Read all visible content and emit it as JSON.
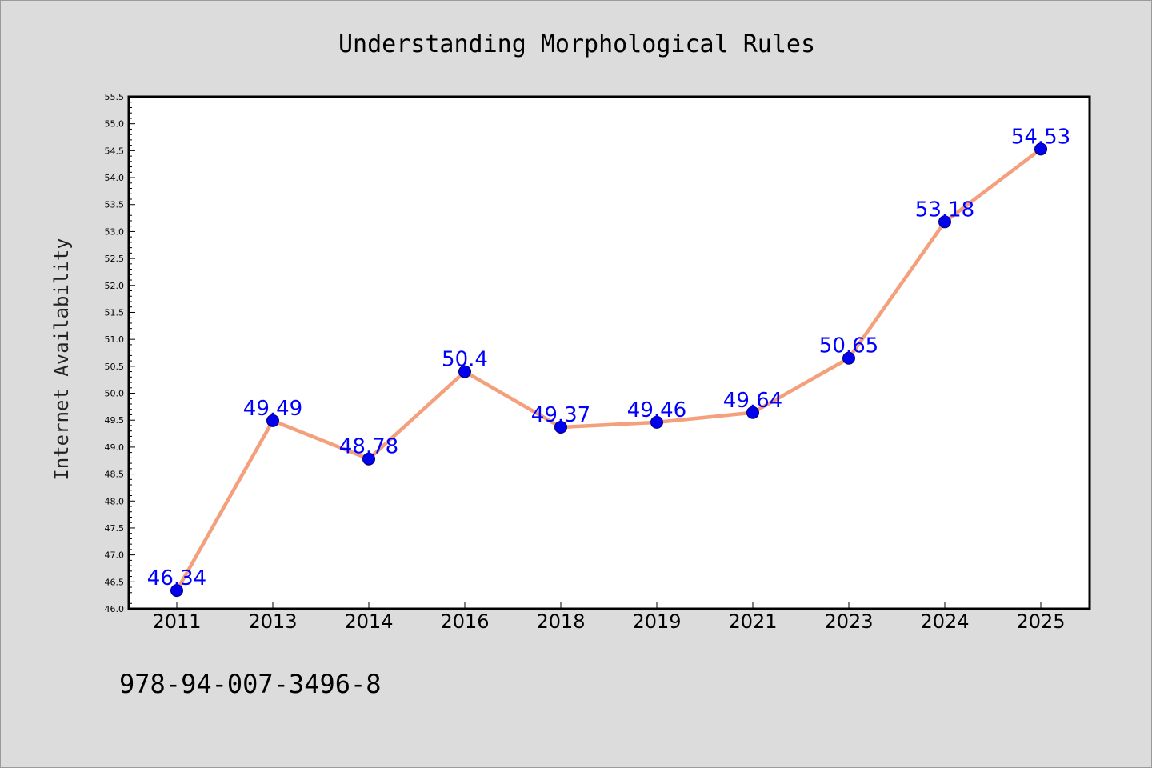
{
  "chart_data": {
    "type": "line",
    "title": "Understanding Morphological Rules",
    "xlabel": "",
    "ylabel": "Internet Availability",
    "categories": [
      "2011",
      "2013",
      "2014",
      "2016",
      "2018",
      "2019",
      "2021",
      "2023",
      "2024",
      "2025"
    ],
    "values": [
      46.34,
      49.49,
      48.78,
      50.4,
      49.37,
      49.46,
      49.64,
      50.65,
      53.18,
      54.53
    ],
    "data_labels": [
      "46.34",
      "49.49",
      "48.78",
      "50.4",
      "49.37",
      "49.46",
      "49.64",
      "50.65",
      "53.18",
      "54.53"
    ],
    "ylim": [
      46.0,
      55.5
    ],
    "yticks": [
      "46.0",
      "46.5",
      "47.0",
      "47.5",
      "48.0",
      "48.5",
      "49.0",
      "49.5",
      "50.0",
      "50.5",
      "51.0",
      "51.5",
      "52.0",
      "52.5",
      "53.0",
      "53.5",
      "54.0",
      "54.5",
      "55.0",
      "55.5"
    ],
    "grid": false,
    "line_color": "#f4a07c",
    "marker_color": "#0000ee",
    "label_color": "#0000ff",
    "background_color": "#dcdcdc",
    "plot_background_color": "#ffffff"
  },
  "footer": {
    "text": "978-94-007-3496-8"
  }
}
